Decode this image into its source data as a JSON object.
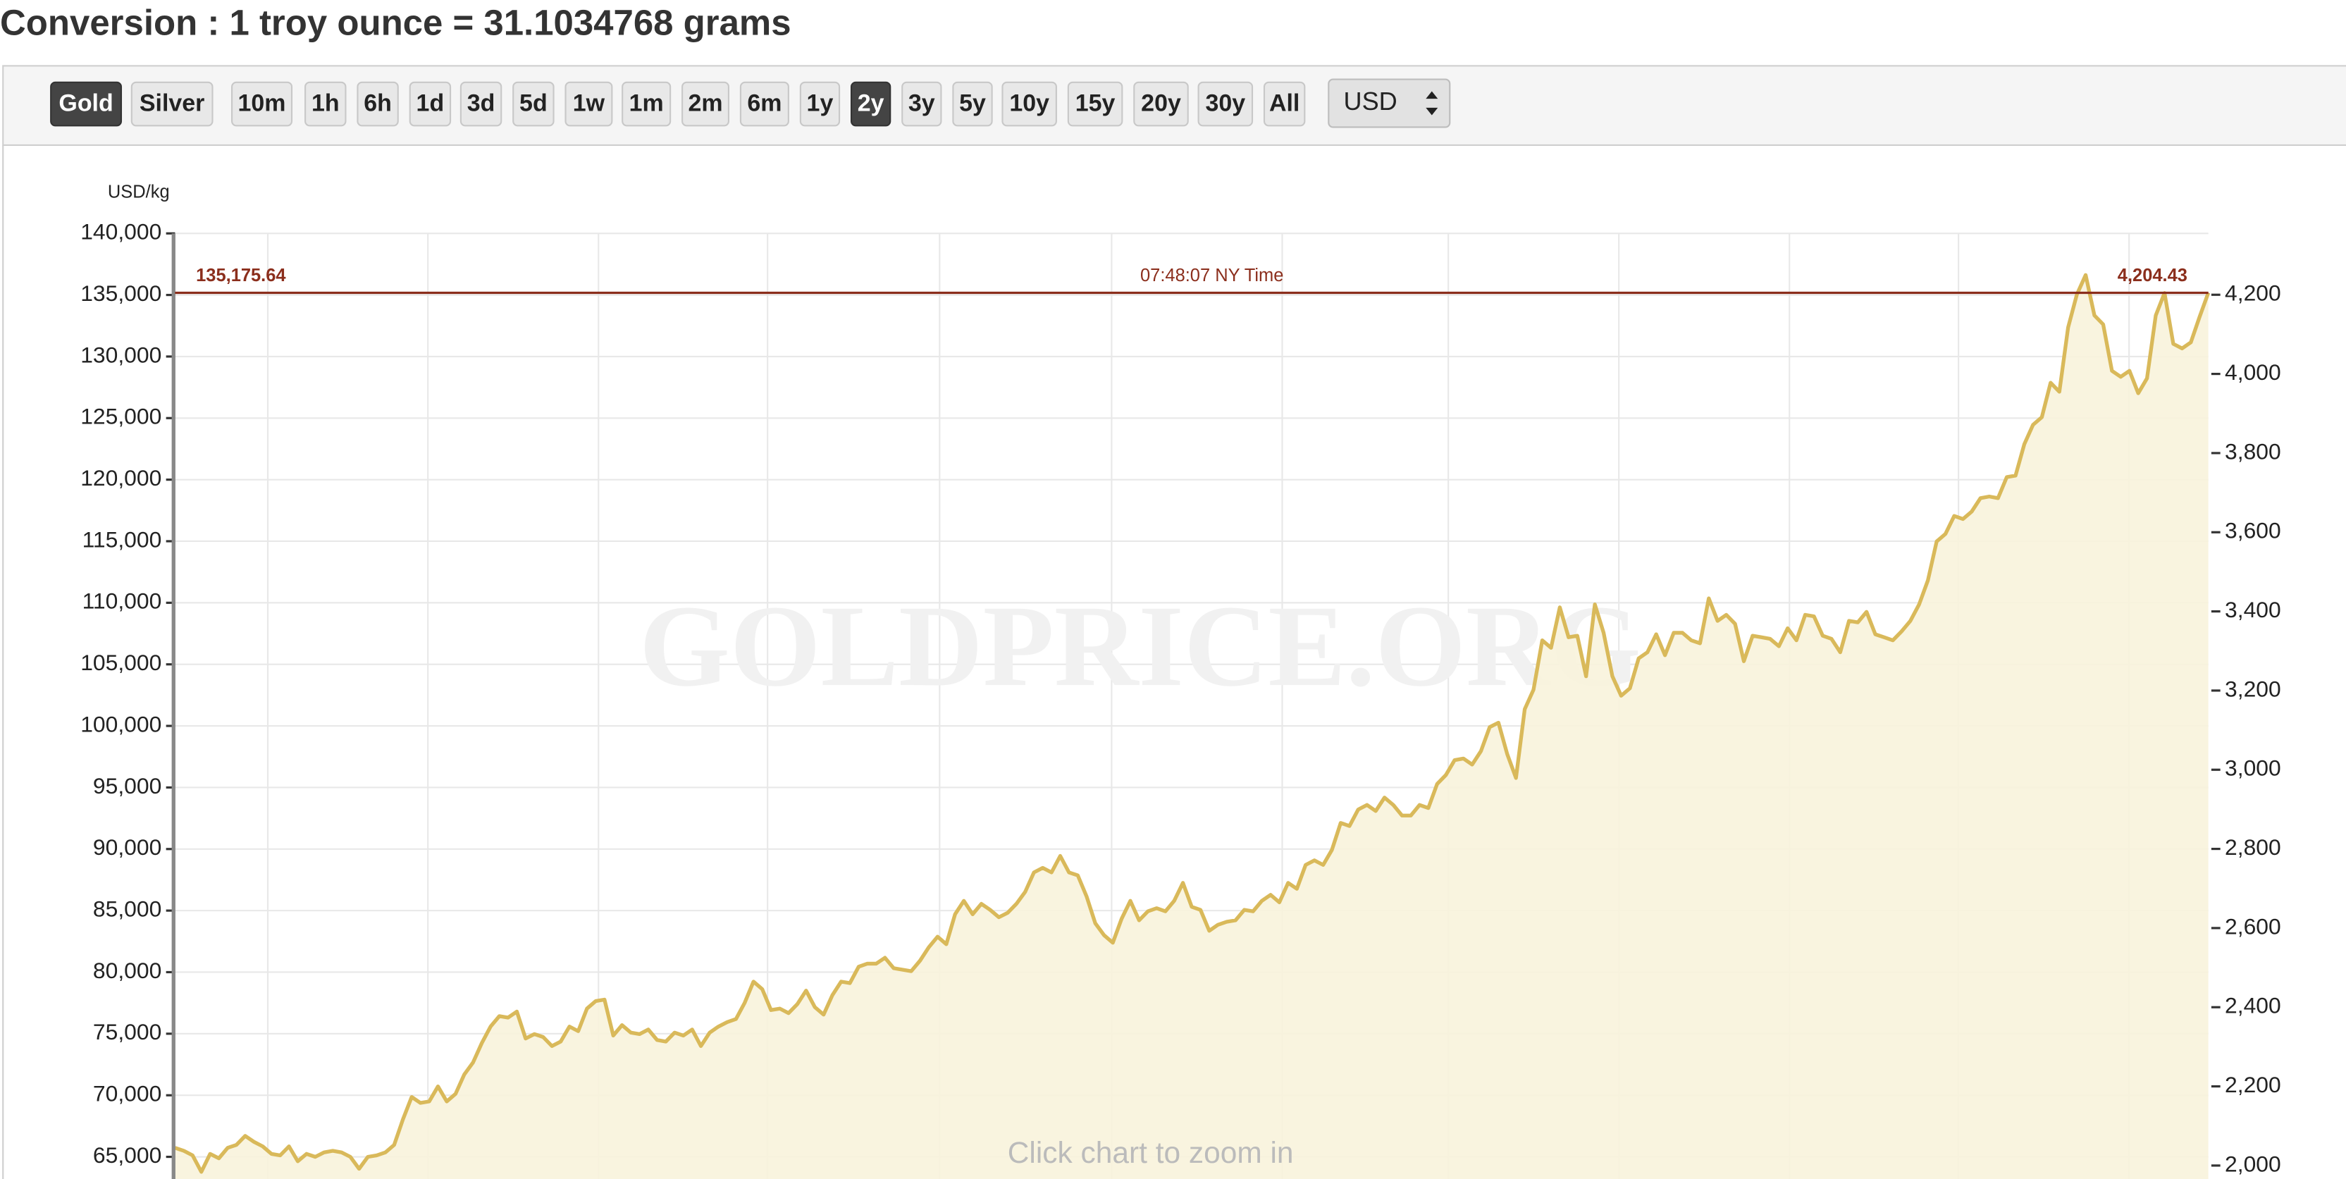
{
  "header": {
    "title": "Conversion : 1 troy ounce = 31.1034768 grams"
  },
  "toolbar": {
    "metals": [
      "Gold",
      "Silver"
    ],
    "ranges": [
      "10m",
      "1h",
      "6h",
      "1d",
      "3d",
      "5d",
      "1w",
      "1m",
      "2m",
      "6m",
      "1y",
      "2y",
      "3y",
      "5y",
      "10y",
      "15y",
      "20y",
      "30y",
      "All"
    ],
    "currency": "USD"
  },
  "chart_data": {
    "type": "line",
    "y_label": "USD/kg",
    "watermark": "GOLDPRICE.ORG",
    "hint": "Click chart to zoom in",
    "color": "#d9b95a",
    "grid": true,
    "ylim": [
      63200,
      140000
    ],
    "yticks": [
      {
        "value": 65000,
        "label": "65,000"
      },
      {
        "value": 70000,
        "label": "70,000"
      },
      {
        "value": 75000,
        "label": "75,000"
      },
      {
        "value": 80000,
        "label": "80,000"
      },
      {
        "value": 85000,
        "label": "85,000"
      },
      {
        "value": 90000,
        "label": "90,000"
      },
      {
        "value": 95000,
        "label": "95,000"
      },
      {
        "value": 100000,
        "label": "100,000"
      },
      {
        "value": 105000,
        "label": "105,000"
      },
      {
        "value": 110000,
        "label": "110,000"
      },
      {
        "value": 115000,
        "label": "115,000"
      },
      {
        "value": 120000,
        "label": "120,000"
      },
      {
        "value": 125000,
        "label": "125,000"
      },
      {
        "value": 130000,
        "label": "130,000"
      },
      {
        "value": 135000,
        "label": "135,000"
      },
      {
        "value": 140000,
        "label": "140,000"
      }
    ],
    "y2lim": [
      1966,
      4355
    ],
    "y2ticks": [
      {
        "value": 2000,
        "label": "2,000"
      },
      {
        "value": 2200,
        "label": "2,200"
      },
      {
        "value": 2400,
        "label": "2,400"
      },
      {
        "value": 2600,
        "label": "2,600"
      },
      {
        "value": 2800,
        "label": "2,800"
      },
      {
        "value": 3000,
        "label": "3,000"
      },
      {
        "value": 3200,
        "label": "3,200"
      },
      {
        "value": 3400,
        "label": "3,400"
      },
      {
        "value": 3600,
        "label": "3,600"
      },
      {
        "value": 3800,
        "label": "3,800"
      },
      {
        "value": 4000,
        "label": "4,000"
      },
      {
        "value": 4200,
        "label": "4,200"
      }
    ],
    "current_price": {
      "value": 135175.64,
      "label": "135,175.64"
    },
    "current_price_oz": {
      "value": 4204.43,
      "label": "4,204.43"
    },
    "time_label": "07:48:07 NY Time",
    "values": [
      65730,
      65490,
      65120,
      63780,
      65240,
      64880,
      65730,
      65970,
      66700,
      66220,
      65850,
      65240,
      65120,
      65850,
      64640,
      65240,
      65000,
      65360,
      65490,
      65360,
      65000,
      64030,
      65000,
      65120,
      65360,
      65970,
      68040,
      69860,
      69380,
      69500,
      70720,
      69500,
      70110,
      71690,
      72660,
      74240,
      75580,
      76430,
      76310,
      76800,
      74610,
      74970,
      74730,
      74000,
      74360,
      75580,
      75210,
      77040,
      77650,
      77770,
      74850,
      75700,
      75090,
      74970,
      75340,
      74490,
      74360,
      75090,
      74850,
      75340,
      74000,
      75090,
      75580,
      75940,
      76190,
      77520,
      79230,
      78620,
      76920,
      77040,
      76670,
      77400,
      78500,
      77160,
      76550,
      78130,
      79230,
      79110,
      80440,
      80690,
      80690,
      81170,
      80320,
      80200,
      80080,
      80930,
      82020,
      82880,
      82270,
      84700,
      85790,
      84700,
      85550,
      85060,
      84460,
      84820,
      85550,
      86520,
      88100,
      88470,
      88100,
      89440,
      88100,
      87860,
      86160,
      83970,
      83000,
      82390,
      84330,
      85790,
      84210,
      84940,
      85190,
      84940,
      85790,
      87250,
      85310,
      85060,
      83360,
      83850,
      84090,
      84210,
      85060,
      84940,
      85790,
      86280,
      85670,
      87250,
      86770,
      88710,
      89080,
      88710,
      89930,
      92120,
      91870,
      93210,
      93580,
      93090,
      94180,
      93580,
      92720,
      92720,
      93580,
      93330,
      95280,
      96010,
      97220,
      97350,
      96860,
      97950,
      99900,
      100260,
      97710,
      95770,
      101360,
      102940,
      106950,
      106340,
      109630,
      107200,
      107320,
      104030,
      109870,
      107560,
      104030,
      102450,
      103060,
      105490,
      105980,
      107440,
      105740,
      107560,
      107560,
      106950,
      106710,
      110360,
      108530,
      109020,
      108290,
      105250,
      107320,
      107200,
      107070,
      106470,
      107930,
      106950,
      109020,
      108900,
      107320,
      107070,
      105980,
      108530,
      108410,
      109260,
      107440,
      107200,
      106950,
      107680,
      108530,
      109870,
      111820,
      114980,
      115590,
      117050,
      116800,
      117410,
      118500,
      118630,
      118500,
      120210,
      120330,
      122880,
      124460,
      125070,
      127870,
      127140,
      132370,
      135040,
      136620,
      133340,
      132610,
      128840,
      128350,
      128840,
      127020,
      128230,
      133340,
      135160,
      131030,
      130660,
      131150,
      133220,
      135180
    ]
  }
}
